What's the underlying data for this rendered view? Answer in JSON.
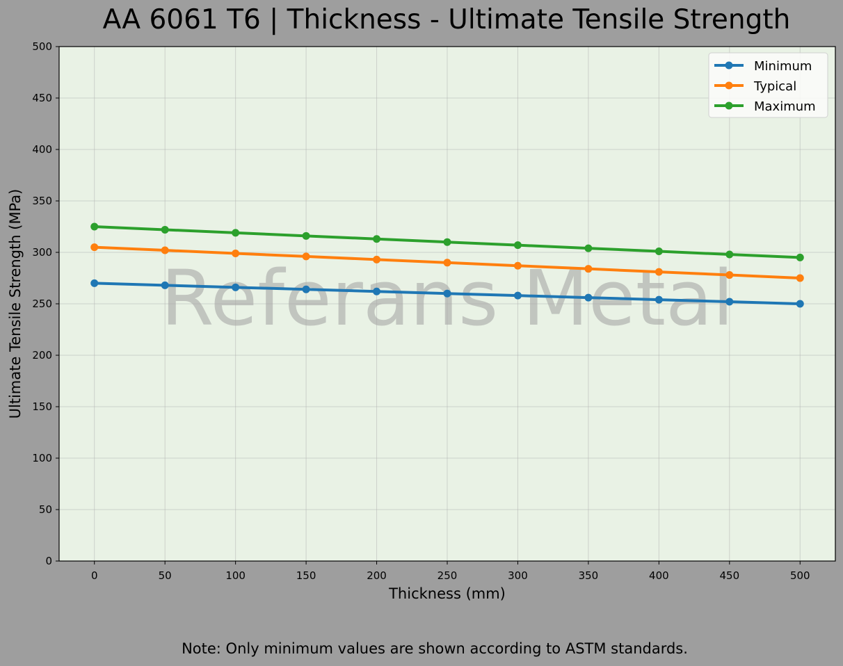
{
  "title": "AA 6061 T6 | Thickness - Ultimate Tensile Strength",
  "note": "Note: Only minimum values are shown according to ASTM standards.",
  "watermark": "Referans Metal",
  "colors": {
    "background": "#9e9e9e",
    "plot_bg": "#e9f2e5",
    "minimum": "#1f77b4",
    "typical": "#ff7f0e",
    "maximum": "#2ca02c"
  },
  "chart_data": {
    "type": "line",
    "title": "AA 6061 T6 | Thickness - Ultimate Tensile Strength",
    "xlabel": "Thickness (mm)",
    "ylabel": "Ultimate Tensile Strength (MPa)",
    "x": [
      0,
      50,
      100,
      150,
      200,
      250,
      300,
      350,
      400,
      450,
      500
    ],
    "series": [
      {
        "name": "Minimum",
        "color": "#1f77b4",
        "values": [
          270,
          268,
          266,
          264,
          262,
          260,
          258,
          256,
          254,
          252,
          250
        ]
      },
      {
        "name": "Typical",
        "color": "#ff7f0e",
        "values": [
          305,
          302,
          299,
          296,
          293,
          290,
          287,
          284,
          281,
          278,
          275
        ]
      },
      {
        "name": "Maximum",
        "color": "#2ca02c",
        "values": [
          325,
          322,
          319,
          316,
          313,
          310,
          307,
          304,
          301,
          298,
          295
        ]
      }
    ],
    "xlim": [
      -25,
      525
    ],
    "ylim": [
      0,
      500
    ],
    "xticks": [
      "0",
      "50",
      "100",
      "150",
      "200",
      "250",
      "300",
      "350",
      "400",
      "450",
      "500"
    ],
    "yticks": [
      "0",
      "50",
      "100",
      "150",
      "200",
      "250",
      "300",
      "350",
      "400",
      "450",
      "500"
    ],
    "grid": true,
    "legend_position": "upper right"
  }
}
